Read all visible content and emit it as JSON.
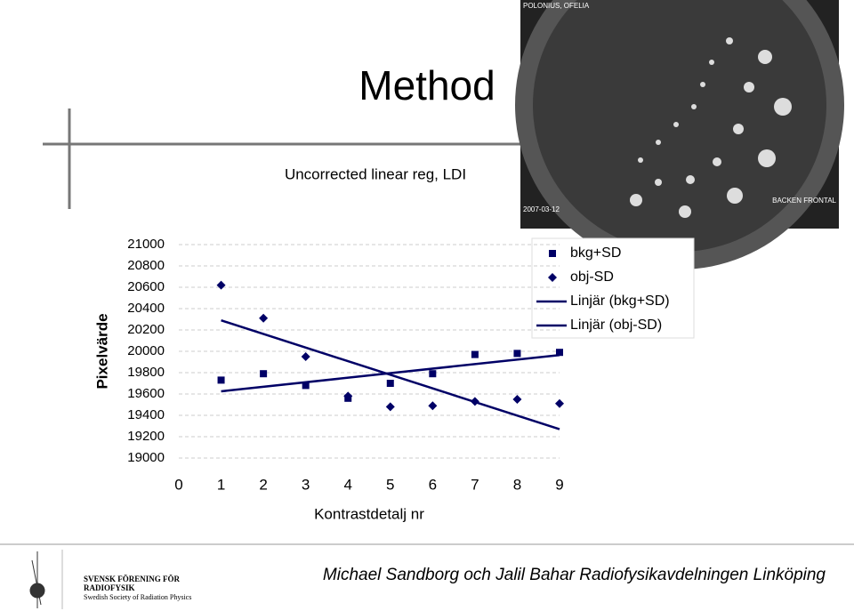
{
  "slide": {
    "title": "Method",
    "footer": "Michael Sandborg och Jalil Bahar Radiofysikavdelningen Linköping",
    "logo": {
      "line1": "SVENSK FÖRENING FÖR",
      "line2": "RADIOFYSIK",
      "line3": "Swedish Society of Radiation Physics"
    },
    "image_labels": {
      "top_left": "POLONIUS, OFELIA",
      "bottom_left": "2007-03-12",
      "bottom_right": "BACKEN FRONTAL"
    }
  },
  "chart_data": {
    "type": "scatter",
    "title": "Uncorrected linear reg, LDI",
    "x_label": "Kontrastdetalj nr",
    "y_label": "Pixelvärde",
    "x": [
      1,
      2,
      3,
      4,
      5,
      6,
      7,
      8,
      9
    ],
    "series": [
      {
        "name": "bkg+SD",
        "color": "#000066",
        "marker": "square",
        "values": [
          19730,
          19790,
          19680,
          19560,
          19700,
          19790,
          19970,
          19980,
          19990
        ]
      },
      {
        "name": "obj-SD",
        "color": "#000066",
        "marker": "diamond",
        "values": [
          20620,
          20310,
          19950,
          19580,
          19480,
          19490,
          19530,
          19550,
          19510
        ]
      }
    ],
    "trendlines": [
      {
        "name": "Linjär (bkg+SD)",
        "color": "#000066",
        "x": [
          1,
          9
        ],
        "values": [
          19625,
          19965
        ]
      },
      {
        "name": "Linjär (obj-SD)",
        "color": "#000066",
        "x": [
          1,
          9
        ],
        "values": [
          20290,
          19270
        ]
      }
    ],
    "xlim": [
      0,
      9
    ],
    "xticks": [
      0,
      1,
      2,
      3,
      4,
      5,
      6,
      7,
      8,
      9
    ],
    "ylim": [
      19000,
      21000
    ],
    "yticks": [
      19000,
      19200,
      19400,
      19600,
      19800,
      20000,
      20200,
      20400,
      20600,
      20800,
      21000
    ],
    "grid": true
  }
}
